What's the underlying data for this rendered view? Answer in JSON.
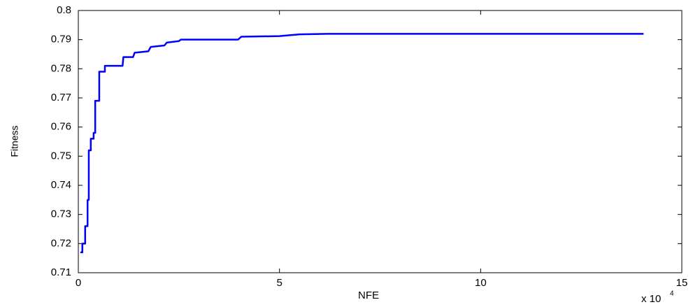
{
  "chart_data": {
    "type": "line",
    "x_label": "NFE",
    "y_label": "Fitness",
    "x_multiplier": {
      "base": "x 10",
      "exponent": "4"
    },
    "x": [
      0.05,
      0.1,
      0.1,
      0.17,
      0.17,
      0.23,
      0.23,
      0.26,
      0.26,
      0.31,
      0.31,
      0.38,
      0.38,
      0.42,
      0.42,
      0.49,
      0.52,
      0.52,
      0.63,
      0.66,
      0.66,
      1.1,
      1.12,
      1.36,
      1.4,
      1.74,
      1.8,
      2.14,
      2.2,
      2.5,
      2.55,
      3.97,
      4.05,
      5.0,
      5.5,
      6.2,
      14.05
    ],
    "series": [
      {
        "name": "Fitness",
        "color": "#0000ff",
        "values": [
          0.717,
          0.717,
          0.72,
          0.72,
          0.726,
          0.726,
          0.735,
          0.735,
          0.752,
          0.752,
          0.756,
          0.756,
          0.758,
          0.758,
          0.769,
          0.769,
          0.769,
          0.779,
          0.779,
          0.779,
          0.781,
          0.781,
          0.784,
          0.784,
          0.7855,
          0.786,
          0.7875,
          0.788,
          0.789,
          0.7895,
          0.79,
          0.79,
          0.791,
          0.7912,
          0.7918,
          0.792,
          0.792
        ]
      }
    ],
    "xlim": [
      0,
      15
    ],
    "xticks": [
      0,
      5,
      10,
      15
    ],
    "ylim": [
      0.71,
      0.8
    ],
    "yticks": [
      0.71,
      0.72,
      0.73,
      0.74,
      0.75,
      0.76,
      0.77,
      0.78,
      0.79,
      0.8
    ],
    "grid": false
  }
}
